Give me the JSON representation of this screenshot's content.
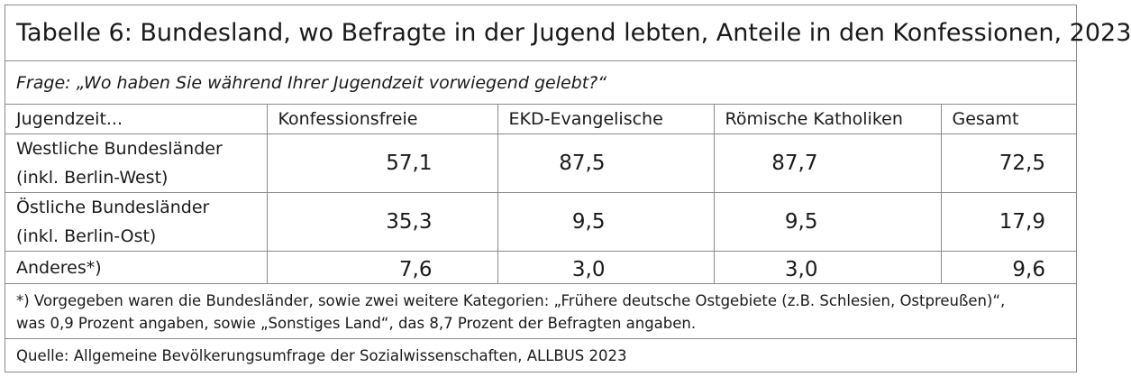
{
  "title": "Tabelle 6: Bundesland, wo Befragte in der Jugend lebten, Anteile in den Konfessionen, 2023",
  "question": "Frage: „Wo haben Sie während Ihrer Jugendzeit vorwiegend gelebt?“",
  "table": {
    "headers": [
      "Jugendzeit...",
      "Konfessionsfreie",
      "EKD-Evangelische",
      "Römische Katholiken",
      "Gesamt"
    ],
    "rows": [
      {
        "label_line1": "Westliche Bundesländer",
        "label_line2": "(inkl. Berlin-West)",
        "values": [
          "57,1",
          "87,5",
          "87,7",
          "72,5"
        ]
      },
      {
        "label_line1": "Östliche Bundesländer",
        "label_line2": "(inkl. Berlin-Ost)",
        "values": [
          "35,3",
          "9,5",
          "9,5",
          "17,9"
        ]
      },
      {
        "label_line1": "Anderes*)",
        "label_line2": "",
        "values": [
          "7,6",
          "3,0",
          "3,0",
          "9,6"
        ]
      }
    ]
  },
  "footnote_line1": "*) Vorgegeben waren die Bundesländer, sowie zwei weitere Kategorien: „Frühere deutsche Ostgebiete (z.B. Schlesien, Ostpreußen)“,",
  "footnote_line2": "was 0,9 Prozent angaben, sowie „Sonstiges Land“, das 8,7 Prozent der Befragten angaben.",
  "source": "Quelle: Allgemeine Bevölkerungsumfrage der Sozialwissenschaften, ALLBUS 2023"
}
